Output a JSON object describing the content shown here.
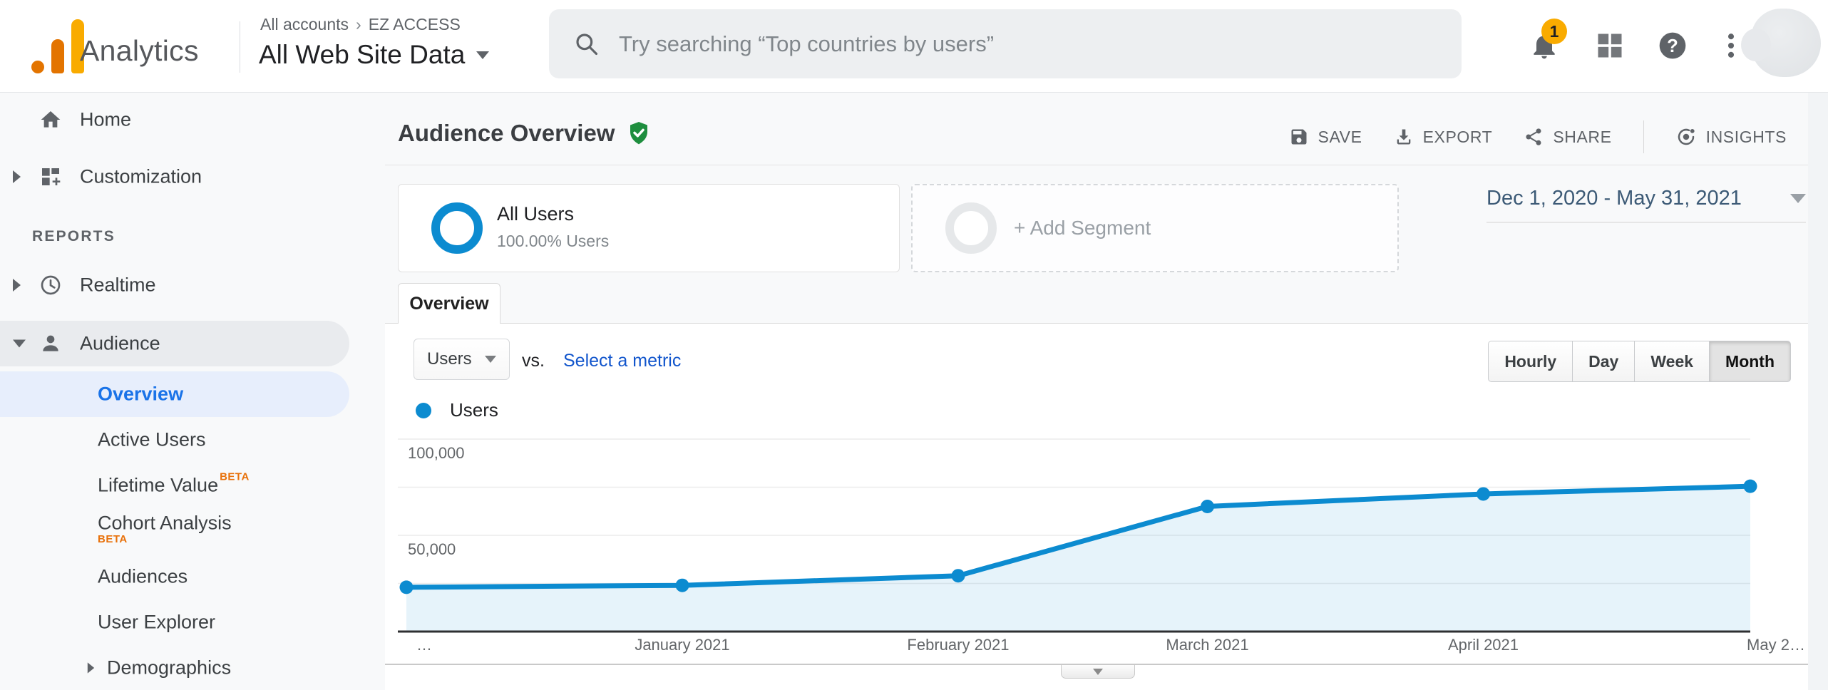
{
  "colors": {
    "accent": "#0c8bd0",
    "google_blue": "#1a73e8",
    "link_blue": "#1155cc",
    "beta_orange": "#e8710a",
    "badge_amber": "#f9ab00",
    "logo_orange": "#e37400",
    "logo_amber": "#f9ab00",
    "shield_green": "#1e8e3e",
    "icon_gray": "#5f6368"
  },
  "topbar": {
    "brand": "Analytics",
    "breadcrumb_accounts": "All accounts",
    "breadcrumb_separator": "›",
    "breadcrumb_org": "EZ ACCESS",
    "property": "All Web Site Data",
    "search_placeholder": "Try searching “Top countries by users”",
    "bell_badge": "1"
  },
  "icons": {
    "help_glyph": "?"
  },
  "sidebar": {
    "home": "Home",
    "customization": "Customization",
    "reports_header": "REPORTS",
    "realtime": "Realtime",
    "audience": "Audience",
    "overview": "Overview",
    "active_users": "Active Users",
    "lifetime_value": "Lifetime Value",
    "cohort_analysis": "Cohort Analysis",
    "beta_badge": "BETA",
    "audiences": "Audiences",
    "user_explorer": "User Explorer",
    "demographics": "Demographics"
  },
  "header": {
    "title": "Audience Overview",
    "save_label": "SAVE",
    "export_label": "EXPORT",
    "share_label": "SHARE",
    "insights_label": "INSIGHTS"
  },
  "segments": {
    "all_users_name": "All Users",
    "all_users_detail": "100.00% Users",
    "add_segment_label": "+ Add Segment",
    "date_range": "Dec 1, 2020 - May 31, 2021"
  },
  "tabs": {
    "overview": "Overview"
  },
  "controls": {
    "metric_selected": "Users",
    "vs_label": "vs.",
    "select_metric_link": "Select a metric",
    "granularity": [
      "Hourly",
      "Day",
      "Week",
      "Month"
    ],
    "active_granularity": "Month"
  },
  "legend": {
    "series": "Users"
  },
  "chart_data": {
    "type": "area",
    "title": "Users over time",
    "series_name": "Users",
    "legend_position": "top-left",
    "grid": true,
    "x_labels": [
      "…",
      "January 2021",
      "February 2021",
      "March 2021",
      "April 2021",
      "May 2…"
    ],
    "points": [
      {
        "month": "Dec 2020",
        "day_offset": 0,
        "value": 23000
      },
      {
        "month": "Jan 2021",
        "day_offset": 31,
        "value": 24000
      },
      {
        "month": "Feb 2021",
        "day_offset": 62,
        "value": 29000
      },
      {
        "month": "Mar 2021",
        "day_offset": 90,
        "value": 65000
      },
      {
        "month": "Apr 2021",
        "day_offset": 121,
        "value": 71500
      },
      {
        "month": "May 2021",
        "day_offset": 151,
        "value": 75500
      }
    ],
    "total_days": 151,
    "y_axis": {
      "min": 0,
      "max": 100000,
      "gridline_step": 25000,
      "labeled_ticks": [
        {
          "value": 100000,
          "label": "100,000"
        },
        {
          "value": 50000,
          "label": "50,000"
        }
      ]
    }
  }
}
